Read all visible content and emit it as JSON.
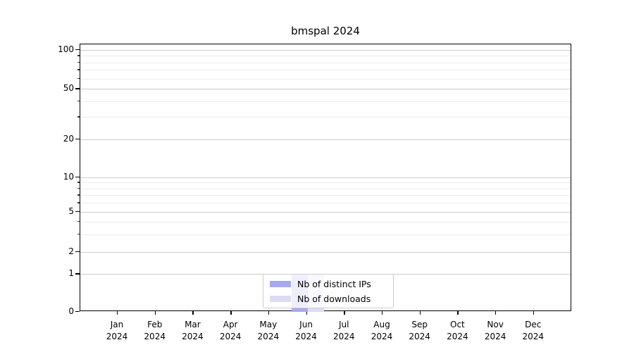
{
  "title": "bmspal 2024",
  "chart_data": {
    "type": "bar",
    "title": "bmspal 2024",
    "x_categories": [
      "Jan",
      "Feb",
      "Mar",
      "Apr",
      "May",
      "Jun",
      "Jul",
      "Aug",
      "Sep",
      "Oct",
      "Nov",
      "Dec"
    ],
    "x_year": "2024",
    "xlabel": "",
    "ylabel": "",
    "y_scale": "symlog",
    "ylim": [
      0,
      110
    ],
    "y_major_ticks": [
      100,
      50,
      20,
      10,
      5,
      2,
      1,
      0
    ],
    "y_minor_ticks": [
      90,
      80,
      70,
      60,
      40,
      30,
      9,
      8,
      7,
      6,
      4,
      3
    ],
    "grid": "on",
    "legend_position": "lower center",
    "series": [
      {
        "name": "Nb of distinct IPs",
        "color": "#a8aaee",
        "values": [
          0,
          0,
          0,
          0,
          0,
          1,
          0,
          0,
          0,
          0,
          0,
          0
        ]
      },
      {
        "name": "Nb of downloads",
        "color": "#dbdcf6",
        "values": [
          0,
          0,
          0,
          0,
          0,
          1,
          0,
          0,
          0,
          0,
          0,
          0
        ]
      }
    ]
  },
  "legend": {
    "items": [
      {
        "label": "Nb of distinct IPs",
        "color": "#a8aaee"
      },
      {
        "label": "Nb of downloads",
        "color": "#dbdcf6"
      }
    ]
  }
}
